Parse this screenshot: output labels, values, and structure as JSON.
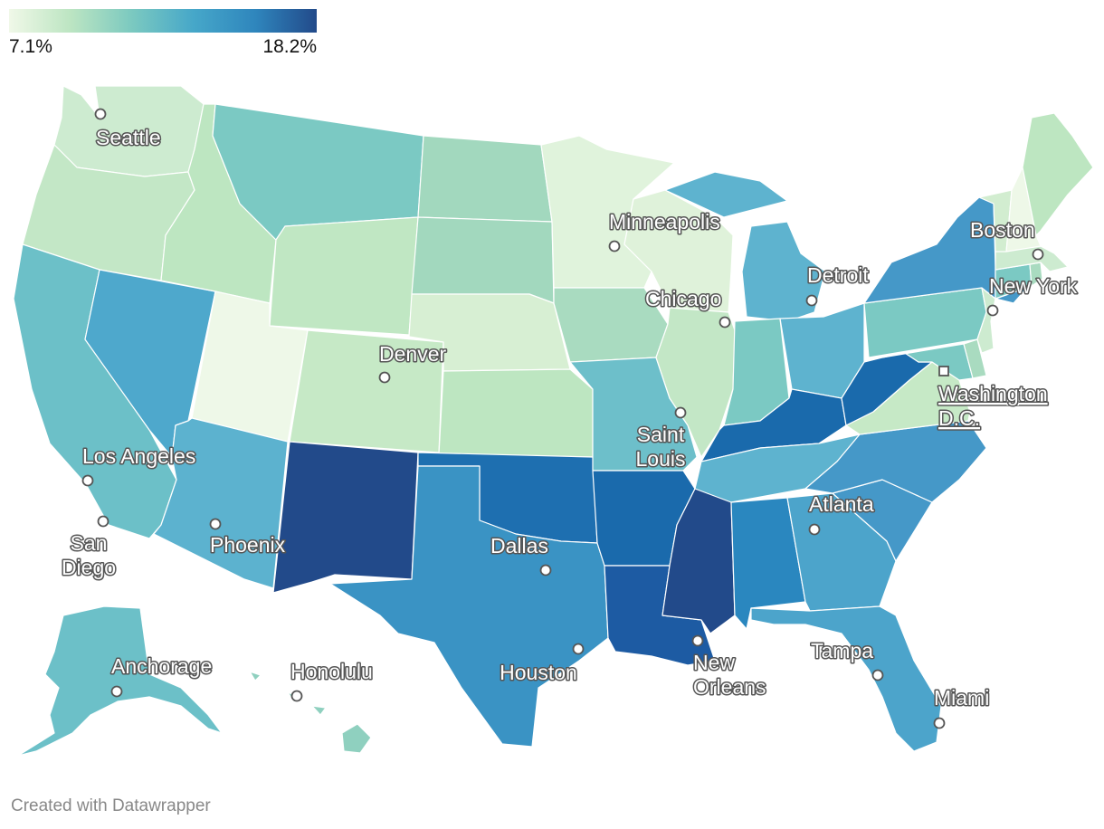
{
  "legend": {
    "min_label": "7.1%",
    "max_label": "18.2%",
    "min_value": 7.1,
    "max_value": 18.2,
    "colors": [
      "#f0f8e8",
      "#bce5c2",
      "#7bc9c0",
      "#46a7c9",
      "#2f86bd",
      "#1b64a6",
      "#224a8a"
    ]
  },
  "footer": {
    "credit": "Created with Datawrapper"
  },
  "colors": {
    "state_border": "#ffffff",
    "city_marker_fill": "#ffffff",
    "city_marker_stroke": "#555555",
    "label_text": "#ffffff",
    "label_halo": "#555555"
  },
  "states": [
    {
      "name": "Washington",
      "color": "#cdebd0"
    },
    {
      "name": "Oregon",
      "color": "#c3e7c6"
    },
    {
      "name": "California",
      "color": "#6cc0c8"
    },
    {
      "name": "Nevada",
      "color": "#4ea8cc"
    },
    {
      "name": "Idaho",
      "color": "#bde6c1"
    },
    {
      "name": "Montana",
      "color": "#7bc9c3"
    },
    {
      "name": "Wyoming",
      "color": "#c0e7c3"
    },
    {
      "name": "Utah",
      "color": "#eef8e8"
    },
    {
      "name": "Arizona",
      "color": "#5cb2cf"
    },
    {
      "name": "Colorado",
      "color": "#c6e9c6"
    },
    {
      "name": "New Mexico",
      "color": "#224a8a"
    },
    {
      "name": "North Dakota",
      "color": "#a2d8be"
    },
    {
      "name": "South Dakota",
      "color": "#a2d8be"
    },
    {
      "name": "Nebraska",
      "color": "#d7efd3"
    },
    {
      "name": "Kansas",
      "color": "#bde6c1"
    },
    {
      "name": "Oklahoma",
      "color": "#1e6fb0"
    },
    {
      "name": "Texas",
      "color": "#3a93c4"
    },
    {
      "name": "Minnesota",
      "color": "#e0f3dc"
    },
    {
      "name": "Iowa",
      "color": "#a9dbc0"
    },
    {
      "name": "Missouri",
      "color": "#6dbfca"
    },
    {
      "name": "Arkansas",
      "color": "#1a6aac"
    },
    {
      "name": "Louisiana",
      "color": "#1d5ba3"
    },
    {
      "name": "Wisconsin",
      "color": "#dff2da"
    },
    {
      "name": "Illinois",
      "color": "#c3e7c6"
    },
    {
      "name": "Michigan",
      "color": "#5eb3cf"
    },
    {
      "name": "Indiana",
      "color": "#7bc9c3"
    },
    {
      "name": "Ohio",
      "color": "#5eb3cf"
    },
    {
      "name": "Kentucky",
      "color": "#1a6aac"
    },
    {
      "name": "Tennessee",
      "color": "#5eb3cf"
    },
    {
      "name": "Mississippi",
      "color": "#224a8a"
    },
    {
      "name": "Alabama",
      "color": "#2a87bf"
    },
    {
      "name": "Georgia",
      "color": "#4ca4cb"
    },
    {
      "name": "Florida",
      "color": "#4ca4cb"
    },
    {
      "name": "South Carolina",
      "color": "#4598c8"
    },
    {
      "name": "North Carolina",
      "color": "#4598c8"
    },
    {
      "name": "Virginia",
      "color": "#c6e9c6"
    },
    {
      "name": "West Virginia",
      "color": "#1a6aac"
    },
    {
      "name": "Pennsylvania",
      "color": "#7bc9c3"
    },
    {
      "name": "New York",
      "color": "#4598c8"
    },
    {
      "name": "Maryland",
      "color": "#7bc9c3"
    },
    {
      "name": "Delaware",
      "color": "#a9dbc0"
    },
    {
      "name": "New Jersey",
      "color": "#cdebd0"
    },
    {
      "name": "Connecticut",
      "color": "#7bc9c3"
    },
    {
      "name": "Rhode Island",
      "color": "#a9dbc0"
    },
    {
      "name": "Massachusetts",
      "color": "#cdebd0"
    },
    {
      "name": "Vermont",
      "color": "#d2edd0"
    },
    {
      "name": "New Hampshire",
      "color": "#eef8e8"
    },
    {
      "name": "Maine",
      "color": "#bde6c1"
    },
    {
      "name": "Alaska",
      "color": "#6cc0c8"
    },
    {
      "name": "Hawaii",
      "color": "#8fd0bf"
    }
  ],
  "cities": [
    {
      "name": "Seattle",
      "label": "Seattle"
    },
    {
      "name": "Minneapolis",
      "label": "Minneapolis"
    },
    {
      "name": "Boston",
      "label": "Boston"
    },
    {
      "name": "Detroit",
      "label": "Detroit"
    },
    {
      "name": "Chicago",
      "label": "Chicago"
    },
    {
      "name": "New York",
      "label": "New York"
    },
    {
      "name": "Denver",
      "label": "Denver"
    },
    {
      "name": "Washington D.C.",
      "label_line1": "Washington",
      "label_line2": "D.C."
    },
    {
      "name": "Saint Louis",
      "label_line1": "Saint",
      "label_line2": "Louis"
    },
    {
      "name": "Los Angeles",
      "label": "Los Angeles"
    },
    {
      "name": "San Diego",
      "label_line1": "San",
      "label_line2": "Diego"
    },
    {
      "name": "Atlanta",
      "label": "Atlanta"
    },
    {
      "name": "Phoenix",
      "label": "Phoenix"
    },
    {
      "name": "Dallas",
      "label": "Dallas"
    },
    {
      "name": "Anchorage",
      "label": "Anchorage"
    },
    {
      "name": "Honolulu",
      "label": "Honolulu"
    },
    {
      "name": "Houston",
      "label": "Houston"
    },
    {
      "name": "New Orleans",
      "label_line1": "New",
      "label_line2": "Orleans"
    },
    {
      "name": "Tampa",
      "label": "Tampa"
    },
    {
      "name": "Miami",
      "label": "Miami"
    }
  ]
}
